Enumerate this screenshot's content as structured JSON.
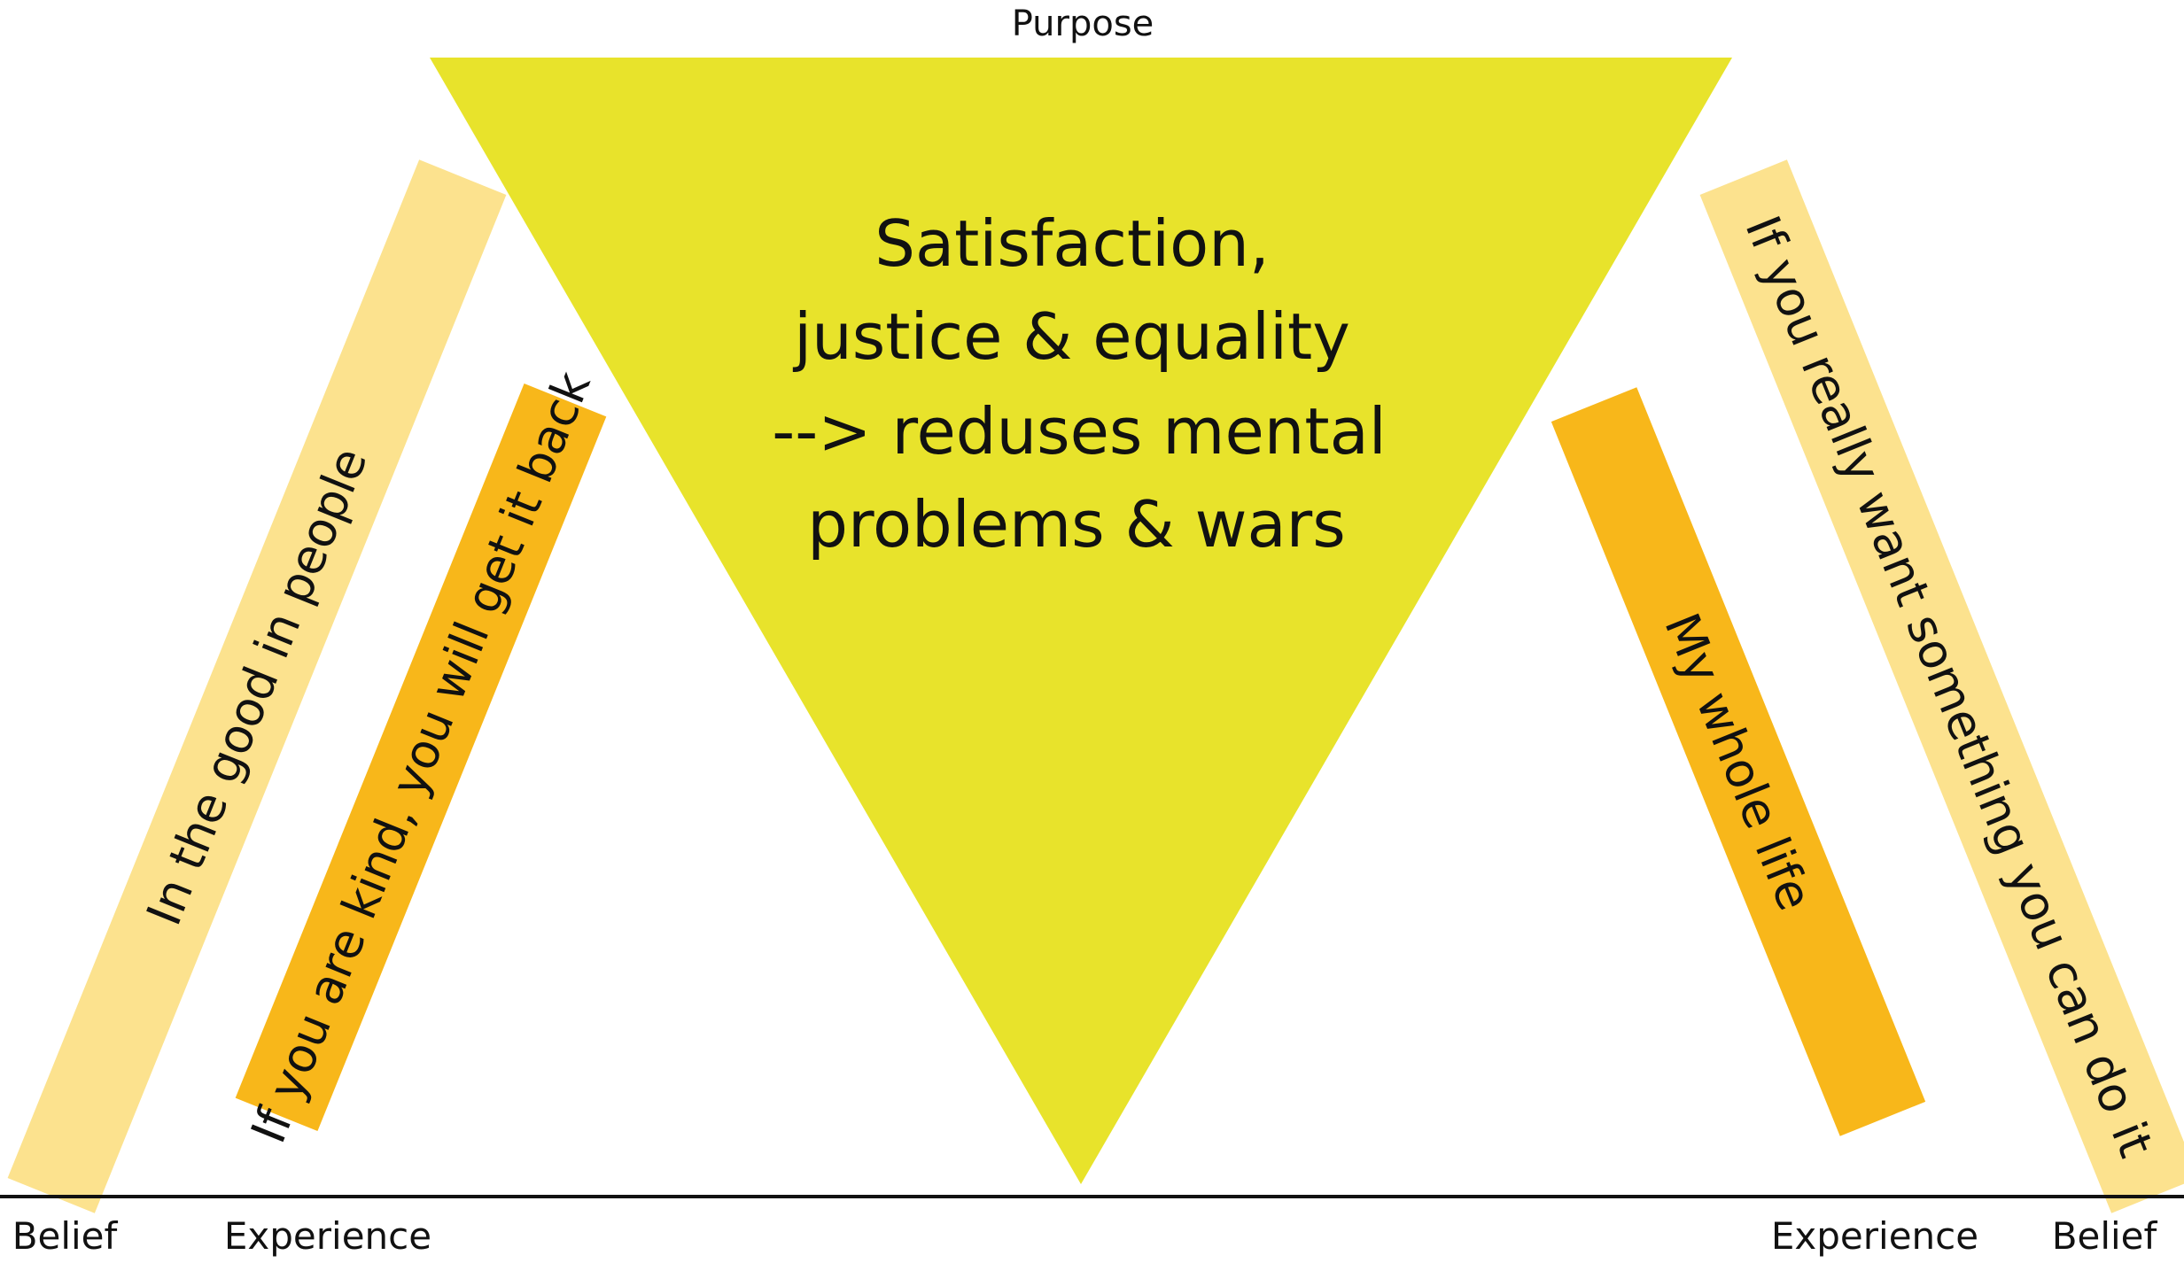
{
  "colors": {
    "triangle": "#E8E32B",
    "belief_bar": "#FCE28E",
    "experience_bar": "#F8B71A",
    "baseline": "#111111",
    "text": "#111111"
  },
  "purpose_label": "Purpose",
  "center_text": {
    "line1": "Satisfaction,",
    "line2": "justice & equality",
    "line3": "--> reduses mental",
    "line4": "problems & wars"
  },
  "left": {
    "belief_bar_text": "In the good in people",
    "experience_bar_text": "If you are kind, you will get it back",
    "belief_label": "Belief",
    "experience_label": "Experience"
  },
  "right": {
    "belief_bar_text": "If you really want something you can do it",
    "experience_bar_text": "My whole life",
    "belief_label": "Belief",
    "experience_label": "Experience"
  }
}
